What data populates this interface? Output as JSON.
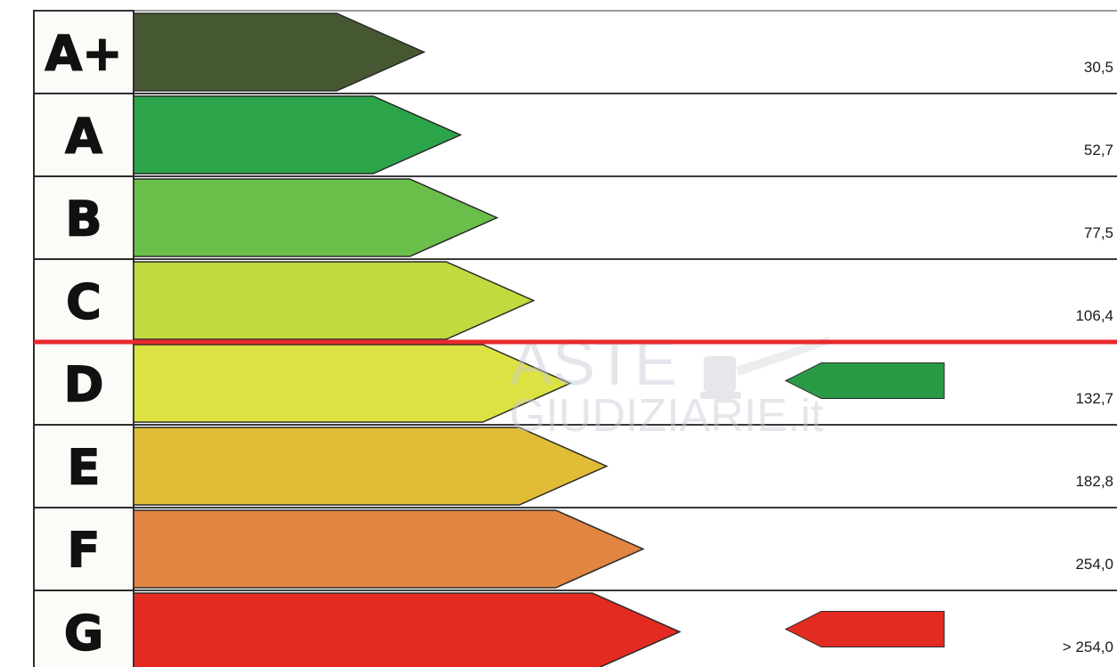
{
  "chart_data": {
    "type": "bar",
    "categories": [
      "A+",
      "A",
      "B",
      "C",
      "D",
      "E",
      "F",
      "G"
    ],
    "thresholds": [
      "30,5",
      "52,7",
      "77,5",
      "106,4",
      "132,7",
      "182,8",
      "254,0",
      "> 254,0"
    ],
    "colors": [
      "#465832",
      "#2ca54a",
      "#6abf4b",
      "#c2d940",
      "#dce241",
      "#e1bd37",
      "#e28541",
      "#e32b22"
    ],
    "indicators": [
      {
        "class": "D",
        "color": "#2b9a46"
      },
      {
        "class": "G",
        "color": "#e32b22"
      }
    ],
    "reference_line": {
      "between": [
        "C",
        "D"
      ],
      "color": "#e8282d"
    }
  },
  "watermark": {
    "line1": "ASTE",
    "line2": "GIUDIZIARIE.it"
  }
}
